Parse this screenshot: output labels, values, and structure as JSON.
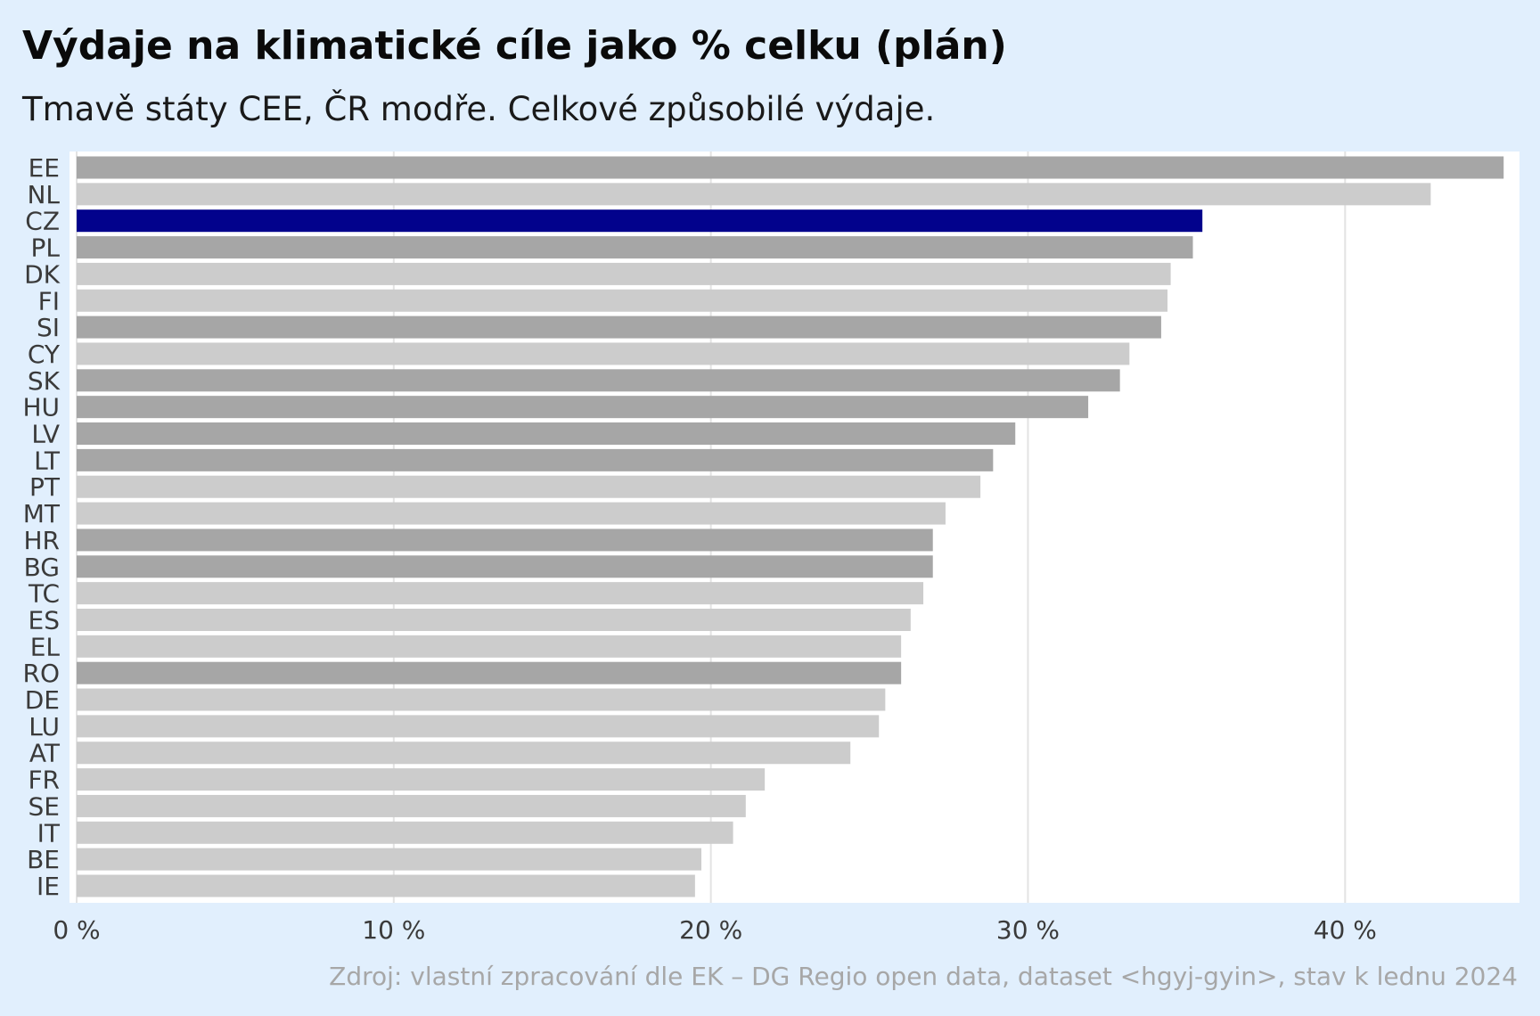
{
  "colors": {
    "background": "#e1effd",
    "plot_background": "#ffffff",
    "cee": "#a6a6a6",
    "other": "#cccccc",
    "cz": "#02028c",
    "gridline": "#e3e3e3"
  },
  "chart_data": {
    "type": "bar",
    "orientation": "horizontal",
    "title": "Výdaje na klimatické cíle jako % celku (plán)",
    "subtitle": "Tmavě státy CEE, ČR modře. Celkové způsobilé výdaje.",
    "source": "Zdroj: vlastní zpracování dle EK – DG Regio open data, dataset <hgyj-gyin>, stav k lednu 2024",
    "categories": [
      "EE",
      "NL",
      "CZ",
      "PL",
      "DK",
      "FI",
      "SI",
      "CY",
      "SK",
      "HU",
      "LV",
      "LT",
      "PT",
      "MT",
      "HR",
      "BG",
      "TC",
      "ES",
      "EL",
      "RO",
      "DE",
      "LU",
      "AT",
      "FR",
      "SE",
      "IT",
      "BE",
      "IE"
    ],
    "values": [
      45.0,
      42.7,
      35.5,
      35.2,
      34.5,
      34.4,
      34.2,
      33.2,
      32.9,
      31.9,
      29.6,
      28.9,
      28.5,
      27.4,
      27.0,
      27.0,
      26.7,
      26.3,
      26.0,
      26.0,
      25.5,
      25.3,
      24.4,
      21.7,
      21.1,
      20.7,
      19.7,
      19.5
    ],
    "groups": [
      "cee",
      "other",
      "cz",
      "cee",
      "other",
      "other",
      "cee",
      "other",
      "cee",
      "cee",
      "cee",
      "cee",
      "other",
      "other",
      "cee",
      "cee",
      "other",
      "other",
      "other",
      "cee",
      "other",
      "other",
      "other",
      "other",
      "other",
      "other",
      "other",
      "other"
    ],
    "xlim": [
      0,
      45.5
    ],
    "xticks": [
      0,
      10,
      20,
      30,
      40
    ],
    "xtick_labels": [
      "0 %",
      "10 %",
      "20 %",
      "30 %",
      "40 %"
    ],
    "xlabel": "",
    "ylabel": "",
    "grid": true,
    "legend": "none"
  }
}
